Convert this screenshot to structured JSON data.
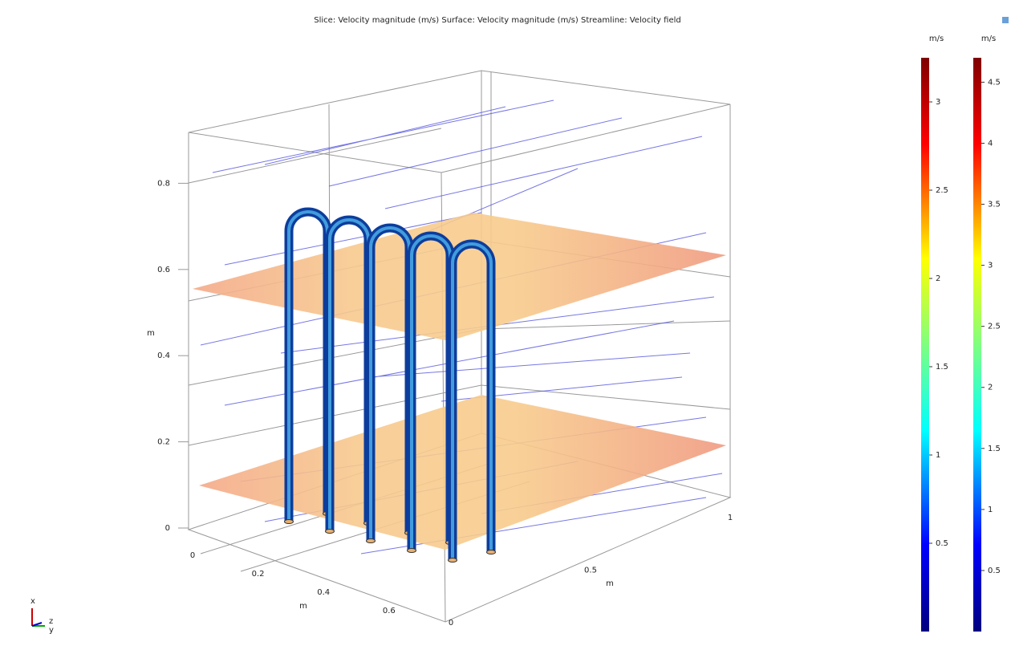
{
  "title": "Slice: Velocity magnitude (m/s)  Surface: Velocity magnitude (m/s)  Streamline: Velocity field",
  "axes": {
    "vertical": {
      "label": "m",
      "ticks": [
        0,
        0.2,
        0.4,
        0.6,
        0.8
      ]
    },
    "depth": {
      "label": "m",
      "ticks": [
        0,
        0.2,
        0.4,
        0.6
      ]
    },
    "width": {
      "label": "m",
      "ticks": [
        0,
        0.5,
        1
      ]
    }
  },
  "colorbars": [
    {
      "unit": "m/s",
      "lim": [
        0,
        3.25
      ],
      "ticks": [
        0.5,
        1,
        1.5,
        2,
        2.5,
        3
      ]
    },
    {
      "unit": "m/s",
      "lim": [
        0,
        4.7
      ],
      "ticks": [
        0.5,
        1,
        1.5,
        2,
        2.5,
        3,
        3.5,
        4,
        4.5
      ]
    }
  ],
  "triad": {
    "x": "x",
    "y": "y",
    "z": "z"
  }
}
